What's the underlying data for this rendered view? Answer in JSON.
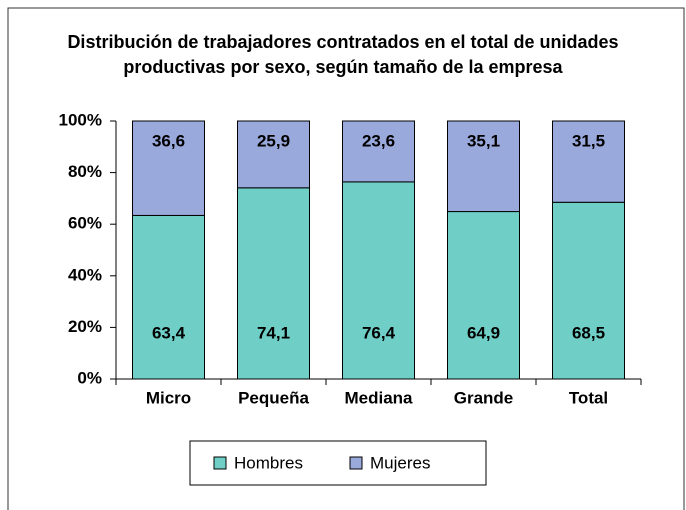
{
  "chart_data": {
    "type": "stacked_bar",
    "title": "Distribución de trabajadores contratados en el total de unidades productivas por sexo, según tamaño de la empresa",
    "categories": [
      "Micro",
      "Pequeña",
      "Mediana",
      "Grande",
      "Total"
    ],
    "series": [
      {
        "name": "Hombres",
        "color": "#6fcfc7",
        "values": [
          63.4,
          74.1,
          76.4,
          64.9,
          68.5
        ],
        "value_labels": [
          "63,4",
          "74,1",
          "76,4",
          "64,9",
          "68,5"
        ]
      },
      {
        "name": "Mujeres",
        "color": "#99a9dc",
        "values": [
          36.6,
          25.9,
          23.6,
          35.1,
          31.5
        ],
        "value_labels": [
          "36,6",
          "25,9",
          "23,6",
          "35,1",
          "31,5"
        ]
      }
    ],
    "ylim": [
      0,
      100
    ],
    "yticks": [
      {
        "value": 0,
        "label": "0%"
      },
      {
        "value": 20,
        "label": "20%"
      },
      {
        "value": 40,
        "label": "40%"
      },
      {
        "value": 60,
        "label": "60%"
      },
      {
        "value": 80,
        "label": "80%"
      },
      {
        "value": 100,
        "label": "100%"
      }
    ],
    "grid": false,
    "legend": "bottom"
  }
}
